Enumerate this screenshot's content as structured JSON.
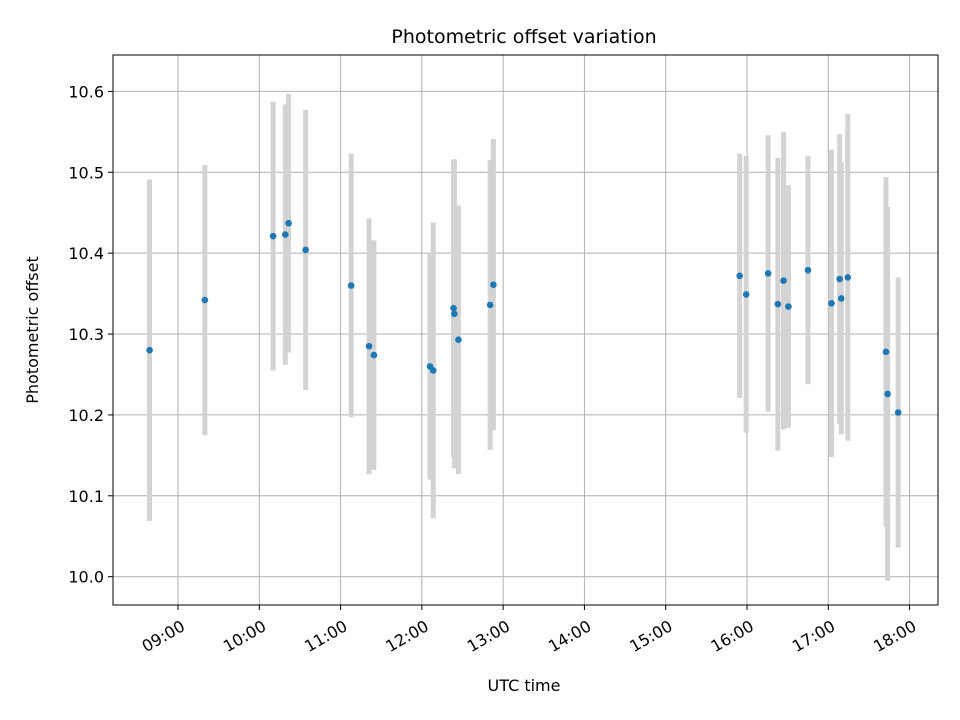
{
  "chart_data": {
    "type": "scatter",
    "title": "Photometric offset variation",
    "xlabel": "UTC time",
    "ylabel": "Photometric offset",
    "x_unit": "hours UTC",
    "xlim": [
      8.2,
      18.35
    ],
    "ylim": [
      9.965,
      10.645
    ],
    "grid": true,
    "errorbar_color": "#d3d3d3",
    "point_color": "#1f77b4",
    "x_ticks": [
      {
        "value": 9,
        "label": "09:00"
      },
      {
        "value": 10,
        "label": "10:00"
      },
      {
        "value": 11,
        "label": "11:00"
      },
      {
        "value": 12,
        "label": "12:00"
      },
      {
        "value": 13,
        "label": "13:00"
      },
      {
        "value": 14,
        "label": "14:00"
      },
      {
        "value": 15,
        "label": "15:00"
      },
      {
        "value": 16,
        "label": "16:00"
      },
      {
        "value": 17,
        "label": "17:00"
      },
      {
        "value": 18,
        "label": "18:00"
      }
    ],
    "y_ticks": [
      {
        "value": 10.0,
        "label": "10.0"
      },
      {
        "value": 10.1,
        "label": "10.1"
      },
      {
        "value": 10.2,
        "label": "10.2"
      },
      {
        "value": 10.3,
        "label": "10.3"
      },
      {
        "value": 10.4,
        "label": "10.4"
      },
      {
        "value": 10.5,
        "label": "10.5"
      },
      {
        "value": 10.6,
        "label": "10.6"
      }
    ],
    "points": [
      {
        "x": 8.65,
        "y": 10.28,
        "err": 0.211
      },
      {
        "x": 9.33,
        "y": 10.342,
        "err": 0.167
      },
      {
        "x": 10.17,
        "y": 10.421,
        "err": 0.166
      },
      {
        "x": 10.32,
        "y": 10.423,
        "err": 0.161
      },
      {
        "x": 10.36,
        "y": 10.437,
        "err": 0.16
      },
      {
        "x": 10.57,
        "y": 10.404,
        "err": 0.173
      },
      {
        "x": 11.13,
        "y": 10.36,
        "err": 0.163
      },
      {
        "x": 11.35,
        "y": 10.285,
        "err": 0.158
      },
      {
        "x": 11.41,
        "y": 10.274,
        "err": 0.142
      },
      {
        "x": 12.1,
        "y": 10.26,
        "err": 0.14
      },
      {
        "x": 12.14,
        "y": 10.255,
        "err": 0.183
      },
      {
        "x": 12.39,
        "y": 10.332,
        "err": 0.184
      },
      {
        "x": 12.4,
        "y": 10.325,
        "err": 0.191
      },
      {
        "x": 12.45,
        "y": 10.293,
        "err": 0.166
      },
      {
        "x": 12.84,
        "y": 10.336,
        "err": 0.179
      },
      {
        "x": 12.88,
        "y": 10.361,
        "err": 0.18
      },
      {
        "x": 15.91,
        "y": 10.372,
        "err": 0.151
      },
      {
        "x": 15.99,
        "y": 10.349,
        "err": 0.171
      },
      {
        "x": 16.26,
        "y": 10.375,
        "err": 0.171
      },
      {
        "x": 16.38,
        "y": 10.337,
        "err": 0.181
      },
      {
        "x": 16.45,
        "y": 10.366,
        "err": 0.184
      },
      {
        "x": 16.51,
        "y": 10.334,
        "err": 0.15
      },
      {
        "x": 16.75,
        "y": 10.379,
        "err": 0.141
      },
      {
        "x": 17.04,
        "y": 10.338,
        "err": 0.19
      },
      {
        "x": 17.14,
        "y": 10.368,
        "err": 0.179
      },
      {
        "x": 17.16,
        "y": 10.344,
        "err": 0.168
      },
      {
        "x": 17.24,
        "y": 10.37,
        "err": 0.202
      },
      {
        "x": 17.71,
        "y": 10.278,
        "err": 0.216
      },
      {
        "x": 17.73,
        "y": 10.226,
        "err": 0.231
      },
      {
        "x": 17.86,
        "y": 10.203,
        "err": 0.167
      }
    ]
  }
}
